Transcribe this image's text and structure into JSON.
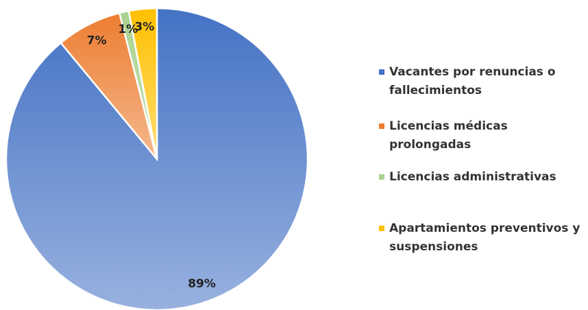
{
  "chart_data": {
    "type": "pie",
    "categories": [
      "Vacantes por renuncias o fallecimientos",
      "Licencias médicas prolongadas",
      "Licencias administrativas",
      "Apartamientos preventivos y suspensiones"
    ],
    "values": [
      89,
      7,
      1,
      3
    ],
    "value_labels": [
      "89%",
      "7%",
      "1%",
      "3%"
    ],
    "colors": [
      "#4472c4",
      "#ed7d31",
      "#a9d18e",
      "#ffc000"
    ],
    "legend": "right"
  }
}
